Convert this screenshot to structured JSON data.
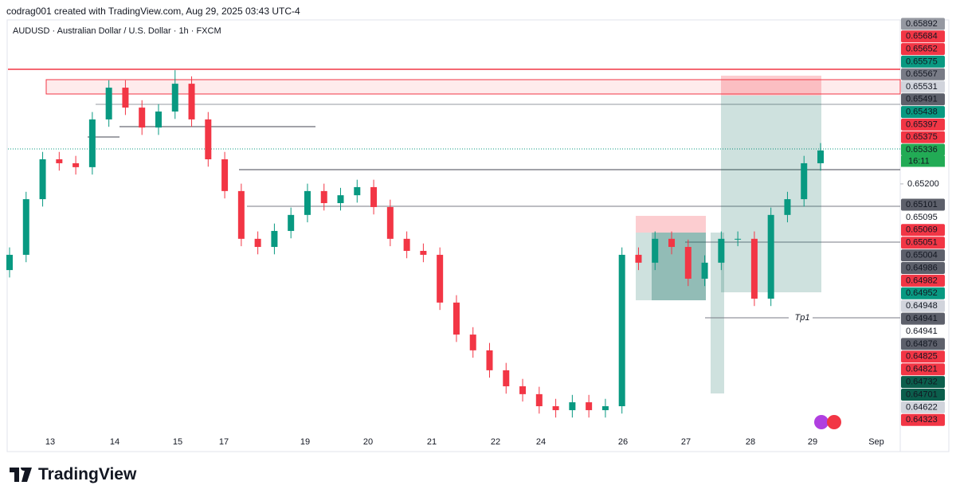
{
  "header": "codrag001 created with TradingView.com, Aug 29, 2025 03:43 UTC-4",
  "footer": "TradingView",
  "annotation": "Tp1",
  "chart_data": {
    "type": "candlestick",
    "title": "AUDUSD · Australian Dollar / U.S. Dollar · 1h · FXCM",
    "up_color": "#089981",
    "down_color": "#f23645",
    "ylim": [
      0.642,
      0.6585
    ],
    "yticks": [
      {
        "value": 0.652,
        "label": "0.65200"
      }
    ],
    "x_labels": [
      "13",
      "14",
      "15",
      "17",
      "19",
      "20",
      "21",
      "22",
      "24",
      "26",
      "27",
      "28",
      "29",
      "Sep"
    ],
    "countdown": "16:11",
    "candles": {
      "open": [
        0.6485,
        0.64912,
        0.65138,
        0.653,
        0.65284,
        0.65268,
        0.65462,
        0.65591,
        0.6551,
        0.65429,
        0.65494,
        0.65607,
        0.65462,
        0.653,
        0.65171,
        0.64977,
        0.64944,
        0.65009,
        0.65074,
        0.65171,
        0.65122,
        0.65154,
        0.65187,
        0.65106,
        0.64977,
        0.64928,
        0.64912,
        0.64718,
        0.64588,
        0.64524,
        0.64443,
        0.64378,
        0.64346,
        0.64297,
        0.64281,
        0.64313,
        0.64281,
        0.64297,
        0.64912,
        0.6488,
        0.64977,
        0.64944,
        0.64815,
        0.6488,
        0.64977,
        0.64977,
        0.64734,
        0.65074,
        0.65138,
        0.65284
      ],
      "high": [
        0.64942,
        0.65168,
        0.6533,
        0.6533,
        0.65314,
        0.65492,
        0.65621,
        0.65621,
        0.6554,
        0.65524,
        0.65662,
        0.65637,
        0.65492,
        0.6533,
        0.65201,
        0.65007,
        0.65039,
        0.65104,
        0.65201,
        0.65201,
        0.65184,
        0.65217,
        0.65217,
        0.65136,
        0.65007,
        0.64958,
        0.64942,
        0.64748,
        0.64618,
        0.64554,
        0.64473,
        0.64408,
        0.64376,
        0.64327,
        0.64343,
        0.64343,
        0.64327,
        0.64942,
        0.64942,
        0.65007,
        0.65007,
        0.64974,
        0.6491,
        0.65007,
        0.65007,
        0.65007,
        0.65104,
        0.65168,
        0.65314,
        0.65366
      ],
      "low": [
        0.6482,
        0.64882,
        0.65108,
        0.65254,
        0.65238,
        0.65238,
        0.65432,
        0.6548,
        0.65399,
        0.65399,
        0.65464,
        0.65432,
        0.6527,
        0.65141,
        0.64947,
        0.64914,
        0.64914,
        0.64979,
        0.65044,
        0.65092,
        0.65092,
        0.65124,
        0.65076,
        0.64947,
        0.64898,
        0.64882,
        0.64688,
        0.64558,
        0.64494,
        0.64413,
        0.64348,
        0.64316,
        0.64267,
        0.64251,
        0.64251,
        0.64251,
        0.64251,
        0.64267,
        0.6485,
        0.6485,
        0.64914,
        0.64785,
        0.64785,
        0.6485,
        0.64947,
        0.64704,
        0.64704,
        0.65044,
        0.65108,
        0.65254
      ],
      "close": [
        0.64912,
        0.65138,
        0.653,
        0.65284,
        0.65268,
        0.65462,
        0.65591,
        0.6551,
        0.65429,
        0.65494,
        0.65607,
        0.65462,
        0.653,
        0.65171,
        0.64977,
        0.64944,
        0.65009,
        0.65074,
        0.65171,
        0.65122,
        0.65154,
        0.65187,
        0.65106,
        0.64977,
        0.64928,
        0.64912,
        0.64718,
        0.64588,
        0.64524,
        0.64443,
        0.64378,
        0.64346,
        0.64297,
        0.64281,
        0.64313,
        0.64281,
        0.64297,
        0.64912,
        0.6488,
        0.64977,
        0.64944,
        0.64815,
        0.6488,
        0.64977,
        0.64977,
        0.64734,
        0.65074,
        0.65138,
        0.65284,
        0.65336
      ]
    },
    "price_labels": [
      {
        "value": 0.65892,
        "label": "0.65892",
        "color": "#9598a1"
      },
      {
        "value": 0.65684,
        "label": "0.65684",
        "color": "#f23645"
      },
      {
        "value": 0.65652,
        "label": "0.65652",
        "color": "#f23645"
      },
      {
        "value": 0.65575,
        "label": "0.65575",
        "color": "#089981"
      },
      {
        "value": 0.65567,
        "label": "0.65567",
        "color": "#787b86"
      },
      {
        "value": 0.65531,
        "label": "0.65531",
        "color": "#d1d4dc"
      },
      {
        "value": 0.65491,
        "label": "0.65491",
        "color": "#5d606b"
      },
      {
        "value": 0.65438,
        "label": "0.65438",
        "color": "#089981"
      },
      {
        "value": 0.65397,
        "label": "0.65397",
        "color": "#f23645"
      },
      {
        "value": 0.65375,
        "label": "0.65375",
        "color": "#f23645"
      },
      {
        "value": 0.65336,
        "label": "0.65336",
        "color": "#22ab55"
      },
      {
        "value": 0.65101,
        "label": "0.65101",
        "color": "#5d606b"
      },
      {
        "value": 0.65095,
        "label": "0.65095",
        "color": "#ffffff"
      },
      {
        "value": 0.65069,
        "label": "0.65069",
        "color": "#f23645"
      },
      {
        "value": 0.65051,
        "label": "0.65051",
        "color": "#f23645"
      },
      {
        "value": 0.65004,
        "label": "0.65004",
        "color": "#5d606b"
      },
      {
        "value": 0.64986,
        "label": "0.64986",
        "color": "#5d606b"
      },
      {
        "value": 0.64982,
        "label": "0.64982",
        "color": "#f23645"
      },
      {
        "value": 0.64952,
        "label": "0.64952",
        "color": "#089981"
      },
      {
        "value": 0.64948,
        "label": "0.64948",
        "color": "#d1d4dc"
      },
      {
        "value": 0.64941,
        "label": "0.64941",
        "color": "#5d606b"
      },
      {
        "value": 0.64941,
        "label": "0.64941",
        "color": "#ffffff"
      },
      {
        "value": 0.64876,
        "label": "0.64876",
        "color": "#5d606b"
      },
      {
        "value": 0.64825,
        "label": "0.64825",
        "color": "#f23645"
      },
      {
        "value": 0.64821,
        "label": "0.64821",
        "color": "#f23645"
      },
      {
        "value": 0.64732,
        "label": "0.64732",
        "color": "#0b5e4c"
      },
      {
        "value": 0.64701,
        "label": "0.64701",
        "color": "#0b5e4c"
      },
      {
        "value": 0.64622,
        "label": "0.64622",
        "color": "#d1d4dc"
      },
      {
        "value": 0.64323,
        "label": "0.64323",
        "color": "#f23645"
      }
    ]
  }
}
